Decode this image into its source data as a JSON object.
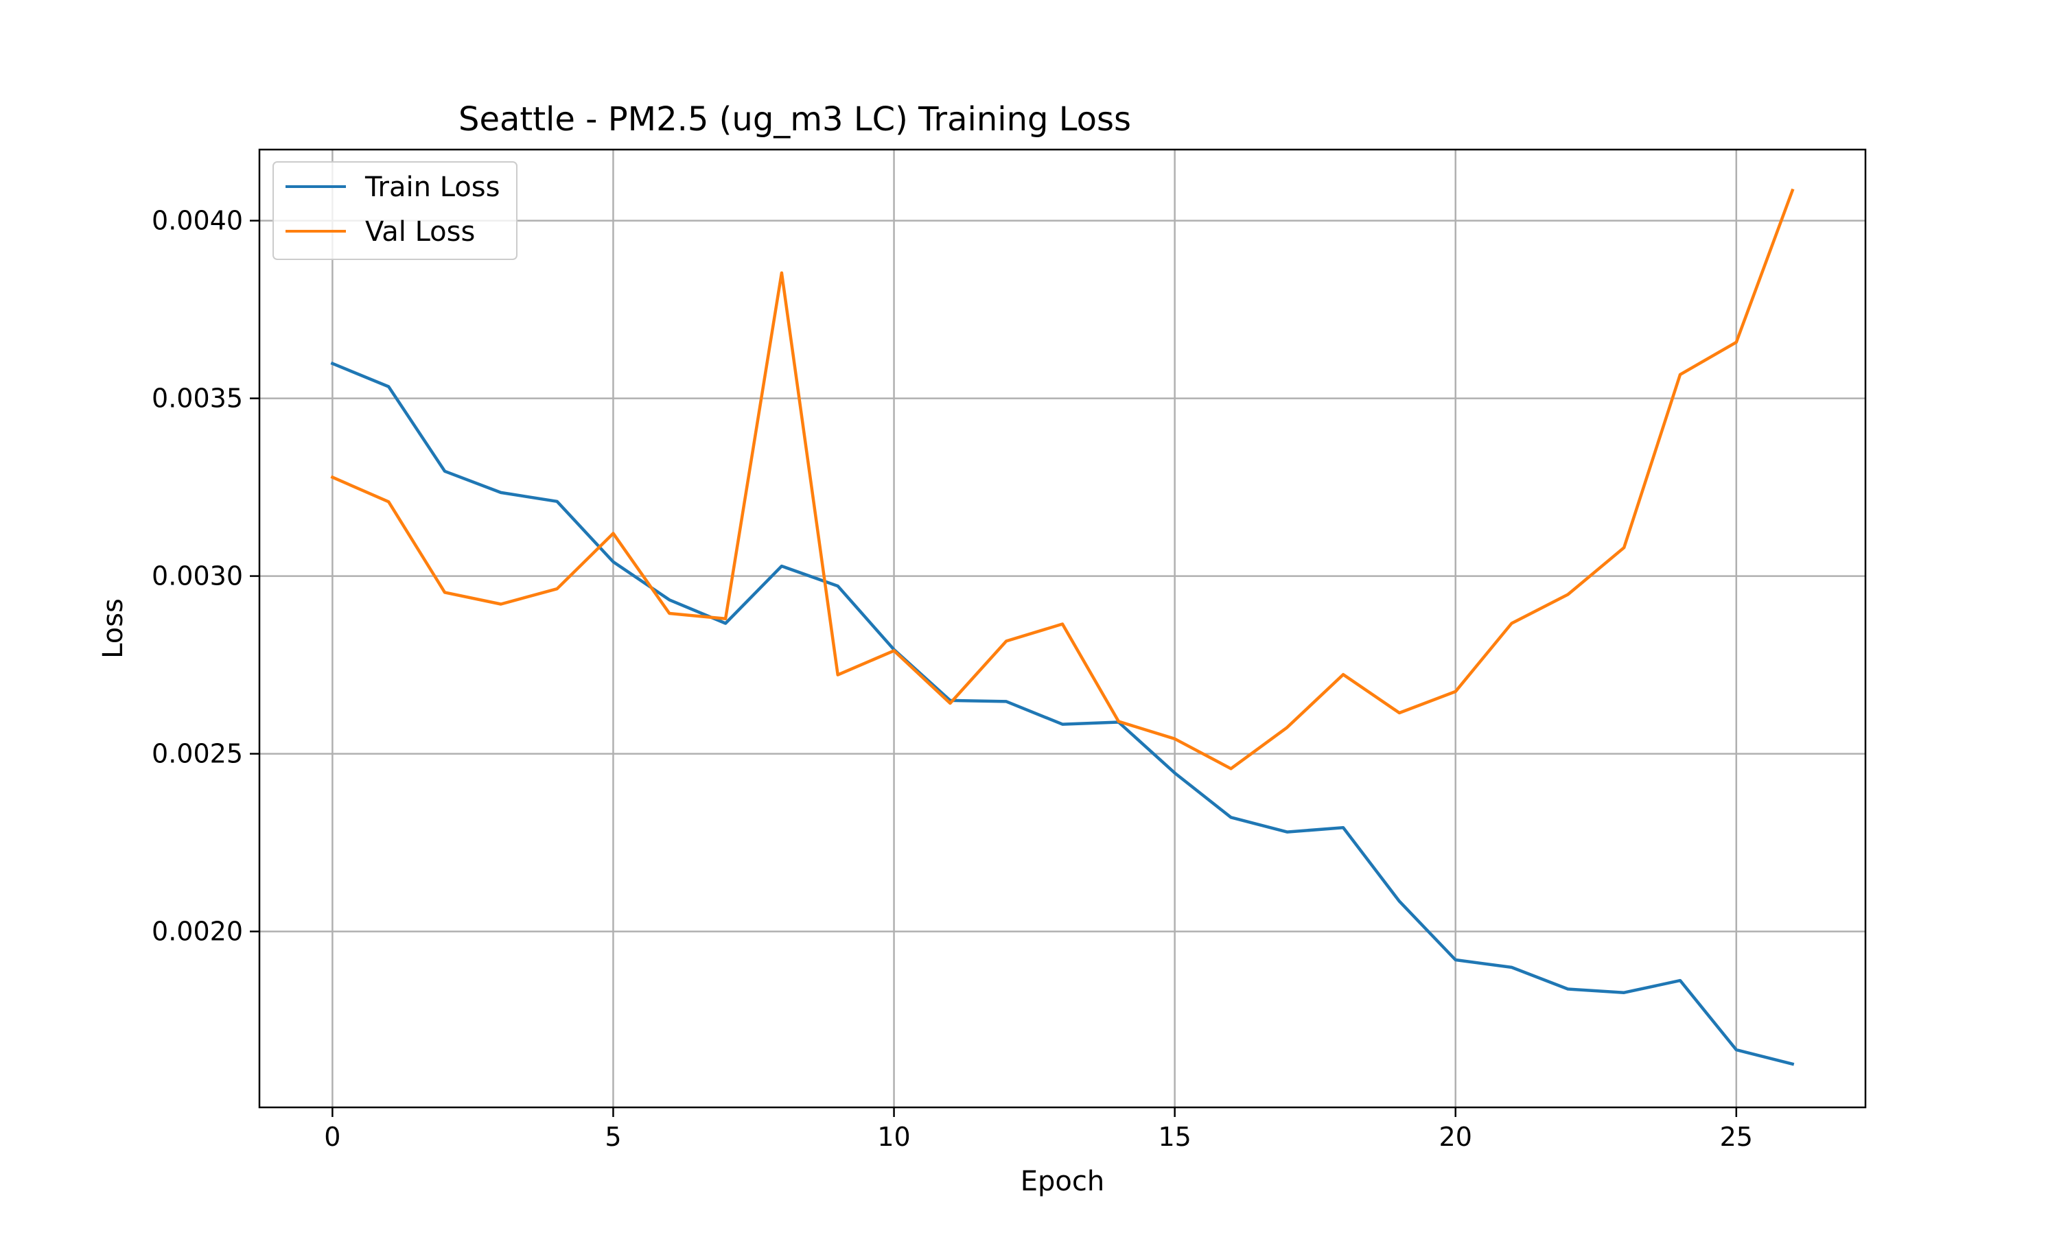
{
  "chart_data": {
    "type": "line",
    "title": "Seattle - PM2.5 (ug_m3 LC) Training Loss",
    "xlabel": "Epoch",
    "ylabel": "Loss",
    "xlim": [
      -1.3,
      27.3
    ],
    "ylim": [
      0.001505,
      0.0042
    ],
    "xticks": [
      0,
      5,
      10,
      15,
      20,
      25
    ],
    "xtick_labels": [
      "0",
      "5",
      "10",
      "15",
      "20",
      "25"
    ],
    "yticks": [
      0.002,
      0.0025,
      0.003,
      0.0035,
      0.004
    ],
    "ytick_labels": [
      "0.0020",
      "0.0025",
      "0.0030",
      "0.0035",
      "0.0040"
    ],
    "grid": true,
    "legend_position": "top-left",
    "x": [
      0,
      1,
      2,
      3,
      4,
      5,
      6,
      7,
      8,
      9,
      10,
      11,
      12,
      13,
      14,
      15,
      16,
      17,
      18,
      19,
      20,
      21,
      22,
      23,
      24,
      25,
      26
    ],
    "series": [
      {
        "name": "Train Loss",
        "color": "#1f77b4",
        "values": [
          0.003598,
          0.003533,
          0.003295,
          0.003235,
          0.00321,
          0.00304,
          0.002933,
          0.002867,
          0.003028,
          0.002972,
          0.002793,
          0.00265,
          0.002647,
          0.002583,
          0.002589,
          0.002446,
          0.002321,
          0.00228,
          0.002292,
          0.002085,
          0.00192,
          0.001899,
          0.001838,
          0.001828,
          0.001862,
          0.001667,
          0.001627
        ]
      },
      {
        "name": "Val Loss",
        "color": "#ff7f0e",
        "values": [
          0.003278,
          0.003209,
          0.002954,
          0.002921,
          0.002964,
          0.00312,
          0.002895,
          0.00288,
          0.003853,
          0.002722,
          0.00279,
          0.002642,
          0.002817,
          0.002865,
          0.002591,
          0.002542,
          0.002458,
          0.002574,
          0.002723,
          0.002615,
          0.002675,
          0.002867,
          0.002948,
          0.00308,
          0.003567,
          0.003658,
          0.004085
        ]
      }
    ]
  }
}
